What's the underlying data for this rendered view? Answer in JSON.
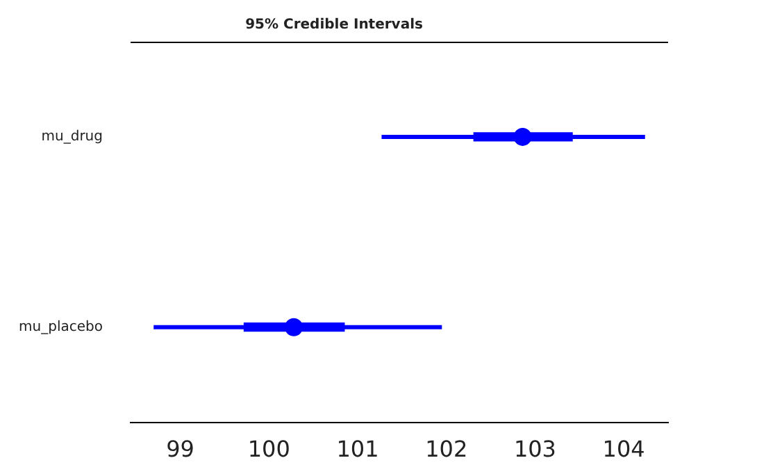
{
  "chart_data": {
    "type": "box",
    "orientation": "horizontal",
    "title": "95% Credible Intervals",
    "categories": [
      "mu_drug",
      "mu_placebo"
    ],
    "marker": "circle",
    "xlim": [
      98.44,
      104.5
    ],
    "xticks": [
      99,
      100,
      101,
      102,
      103,
      104
    ],
    "series": [
      {
        "color": "#0000ff",
        "boxes": [
          {
            "low": 101.27,
            "q1": 102.31,
            "median": 102.86,
            "q3": 103.42,
            "high": 104.24
          },
          {
            "low": 98.7,
            "q1": 99.72,
            "median": 100.28,
            "q3": 100.85,
            "high": 101.95
          }
        ]
      }
    ]
  }
}
